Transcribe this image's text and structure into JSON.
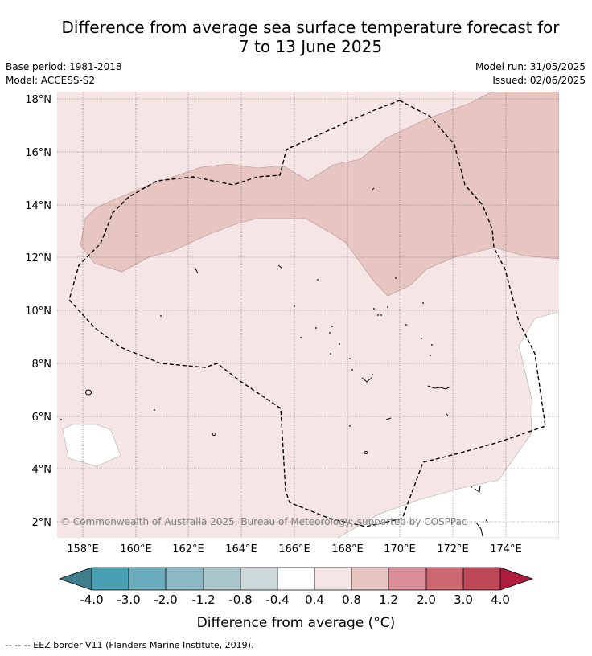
{
  "header": {
    "title_line1": "Difference from average sea surface temperature forecast for",
    "title_line2": "7 to 13 June 2025",
    "base_period": "Base period: 1981-2018",
    "model": "Model: ACCESS-S2",
    "model_run": "Model run: 31/05/2025",
    "issued": "Issued: 02/06/2025"
  },
  "map": {
    "lon_range": [
      157,
      175.9
    ],
    "lat_range": [
      1.4,
      18.2
    ],
    "x_ticks": [
      "158°E",
      "160°E",
      "162°E",
      "164°E",
      "166°E",
      "168°E",
      "170°E",
      "172°E",
      "174°E"
    ],
    "y_ticks": [
      "2°N",
      "4°N",
      "6°N",
      "8°N",
      "10°N",
      "12°N",
      "14°N",
      "16°N",
      "18°N"
    ],
    "copyright": "© Commonwealth of Australia 2025, Bureau of Meteorology; supported by COSPPac",
    "colors": {
      "band_0_4_to_0_8": "#f5e6e5",
      "band_0_8_to_1_2": "#e7c5c1",
      "band_neutral": "#ffffff"
    }
  },
  "colorbar": {
    "labels": [
      "-4.0",
      "-3.0",
      "-2.0",
      "-1.2",
      "-0.8",
      "-0.4",
      "0.4",
      "0.8",
      "1.2",
      "2.0",
      "3.0",
      "4.0"
    ],
    "colors": [
      "#3f7e8c",
      "#48a0b2",
      "#6aacbc",
      "#8cb8c4",
      "#a9c6cb",
      "#cdd8da",
      "#ffffff",
      "#f5e6e5",
      "#e7c5c1",
      "#d98e97",
      "#cc6671",
      "#be4758",
      "#b01c3e"
    ],
    "title": "Difference from average (°C)"
  },
  "footer": {
    "legend": "--  --  -- EEZ border V11 (Flanders Marine Institute, 2019)."
  }
}
